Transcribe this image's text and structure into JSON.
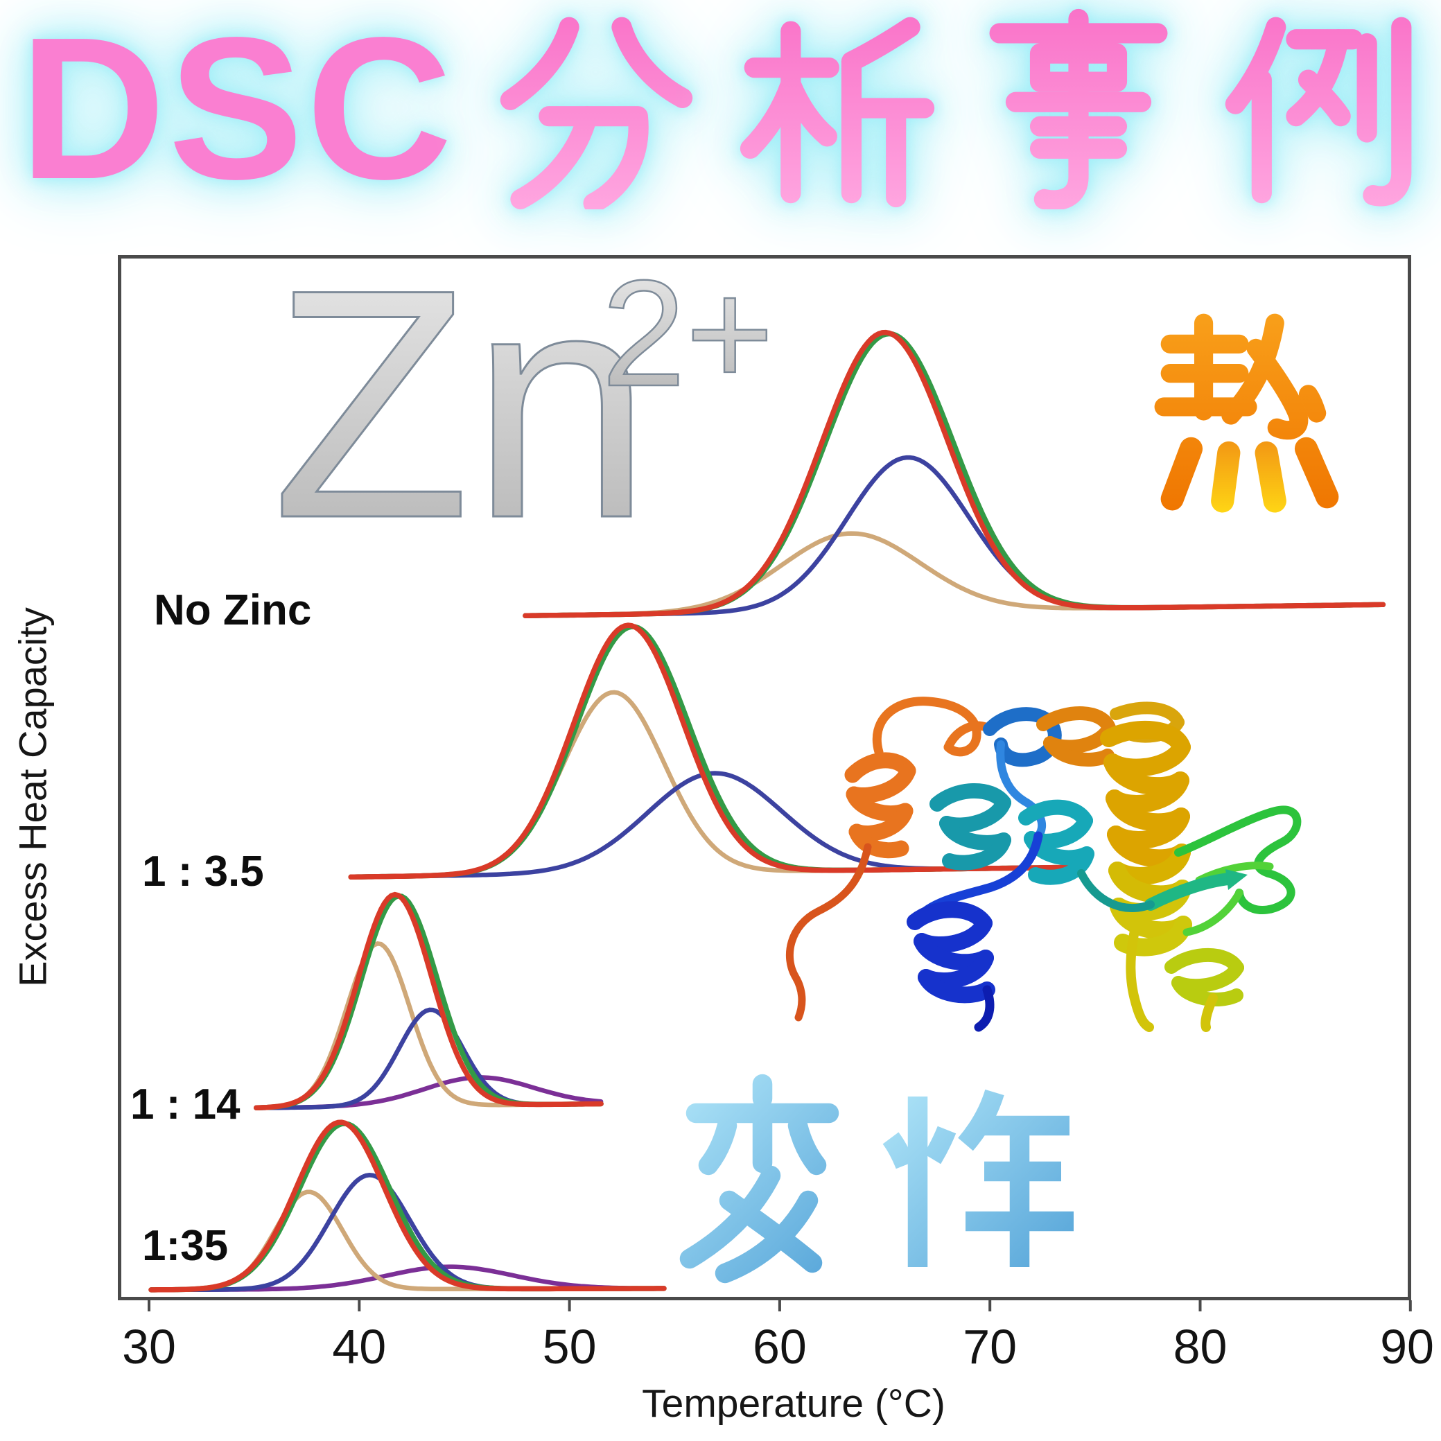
{
  "title": {
    "latin": "DSC",
    "kanji": "分析事例",
    "full": "DSC分析事例",
    "kanji_chars": [
      "分",
      "析",
      "事",
      "例"
    ]
  },
  "annotations": {
    "zinc_symbol": "Zn",
    "zinc_charge": "2+",
    "heat_kanji": "熱",
    "denaturation_kanji": "変性",
    "protein_illustration": "rainbow ribbon protein structure"
  },
  "axes": {
    "x_label": "Temperature (°C)",
    "y_label": "Excess Heat Capacity"
  },
  "colors": {
    "red": "#d93a28",
    "green": "#339a46",
    "blue": "#3c42a0",
    "tan": "#cfa878",
    "purple": "#7b2f96",
    "axis": "#4a4a4a",
    "label_text": "#0d0d0d",
    "title_pink": "#fa7fd1",
    "title_pink_light": "#ffa6e0",
    "title_glow": "#aef0f8",
    "heat_orange_dark": "#ef7500",
    "heat_orange": "#f9a11b",
    "heat_yellow": "#ffd815",
    "denat_blue_light": "#b5e9fa",
    "denat_blue": "#4e9fd6",
    "zinc_silver_light": "#ececec",
    "zinc_silver_dark": "#b2b2b2",
    "zinc_outline": "#7e8b99",
    "protein": {
      "orange": "#e8741f",
      "orange_red": "#d8541c",
      "mid_blue": "#1e6ec8",
      "light_blue": "#2f86e0",
      "teal": "#1899aa",
      "cyan": "#17a8b8",
      "dark_blue": "#1632cc",
      "navy": "#0d1db0",
      "gold": "#dca400",
      "green": "#2cc33c",
      "spring_green": "#1fb784",
      "yellow_green": "#b9cc10",
      "yellow": "#d2c40a"
    }
  },
  "chart_data": {
    "type": "line",
    "title": "",
    "xlabel": "Temperature (°C)",
    "ylabel": "Excess Heat Capacity",
    "x_axis": {
      "min": 30,
      "max": 90,
      "unit": "°C",
      "ticks": [
        30,
        40,
        50,
        60,
        70,
        80,
        90
      ]
    },
    "y_axis": {
      "label": "Excess Heat Capacity",
      "ticks_shown": false
    },
    "legend_shown": false,
    "series_meaning": {
      "red": "experimental total",
      "green": "overall fit",
      "tan": "fit component 1",
      "blue": "fit component 2",
      "purple": "fit component 3"
    },
    "traces": [
      {
        "label": "No Zinc",
        "baseline_frac": 0.345,
        "baseline_drop": 16,
        "start_C": 47.9,
        "end_C": 88.7,
        "series": [
          {
            "id": "tan",
            "role": "component",
            "color": "tan",
            "tm": 63.4,
            "height": 0.28,
            "sigma": 3.3,
            "z": 2
          },
          {
            "id": "blue",
            "role": "component",
            "color": "blue",
            "tm": 66.1,
            "height": 0.55,
            "sigma": 2.9,
            "z": 3
          },
          {
            "id": "green",
            "role": "fit-total",
            "color": "green",
            "tm": 65.2,
            "height": 0.995,
            "sigma": 3.05,
            "z": 4
          },
          {
            "id": "red",
            "role": "experimental",
            "color": "red",
            "tm": 65.0,
            "height": 1.0,
            "sigma": 3.0,
            "z": 5
          }
        ]
      },
      {
        "label": "1 : 3.5",
        "baseline_frac": 0.595,
        "baseline_drop": 14,
        "start_C": 39.6,
        "end_C": 74.0,
        "series": [
          {
            "id": "tan",
            "role": "component",
            "color": "tan",
            "tm": 52.1,
            "height": 0.65,
            "sigma": 2.4,
            "z": 2
          },
          {
            "id": "blue",
            "role": "component",
            "color": "blue",
            "tm": 56.9,
            "height": 0.355,
            "sigma": 3.2,
            "z": 3
          },
          {
            "id": "green",
            "role": "fit-total",
            "color": "green",
            "tm": 53.0,
            "height": 0.885,
            "sigma": 2.65,
            "z": 4
          },
          {
            "id": "red",
            "role": "experimental",
            "color": "red",
            "tm": 52.8,
            "height": 0.89,
            "sigma": 2.6,
            "z": 5
          }
        ]
      },
      {
        "label": "1 : 14",
        "baseline_frac": 0.816,
        "baseline_drop": 6,
        "start_C": 35.1,
        "end_C": 51.5,
        "series": [
          {
            "id": "purple",
            "role": "component",
            "color": "purple",
            "tm": 45.7,
            "height": 0.1,
            "sigma": 2.6,
            "z": 1
          },
          {
            "id": "tan",
            "role": "component",
            "color": "tan",
            "tm": 40.9,
            "height": 0.585,
            "sigma": 1.5,
            "z": 2
          },
          {
            "id": "blue",
            "role": "component",
            "color": "blue",
            "tm": 43.4,
            "height": 0.345,
            "sigma": 1.5,
            "z": 3
          },
          {
            "id": "green",
            "role": "fit-total",
            "color": "green",
            "tm": 41.9,
            "height": 0.755,
            "sigma": 1.8,
            "z": 4
          },
          {
            "id": "red",
            "role": "experimental",
            "color": "red",
            "tm": 41.7,
            "height": 0.76,
            "sigma": 1.75,
            "z": 5
          }
        ]
      },
      {
        "label": "1:35",
        "baseline_frac": 0.99,
        "baseline_drop": 2,
        "start_C": 30.1,
        "end_C": 54.5,
        "series": [
          {
            "id": "purple",
            "role": "component",
            "color": "purple",
            "tm": 44.3,
            "height": 0.08,
            "sigma": 3.0,
            "z": 1
          },
          {
            "id": "tan",
            "role": "component",
            "color": "tan",
            "tm": 37.6,
            "height": 0.35,
            "sigma": 1.6,
            "z": 2
          },
          {
            "id": "blue",
            "role": "component",
            "color": "blue",
            "tm": 40.5,
            "height": 0.41,
            "sigma": 1.9,
            "z": 3
          },
          {
            "id": "green",
            "role": "fit-total",
            "color": "green",
            "tm": 39.3,
            "height": 0.595,
            "sigma": 2.15,
            "z": 4
          },
          {
            "id": "red",
            "role": "experimental",
            "color": "red",
            "tm": 39.1,
            "height": 0.6,
            "sigma": 2.1,
            "z": 5
          }
        ]
      }
    ]
  }
}
